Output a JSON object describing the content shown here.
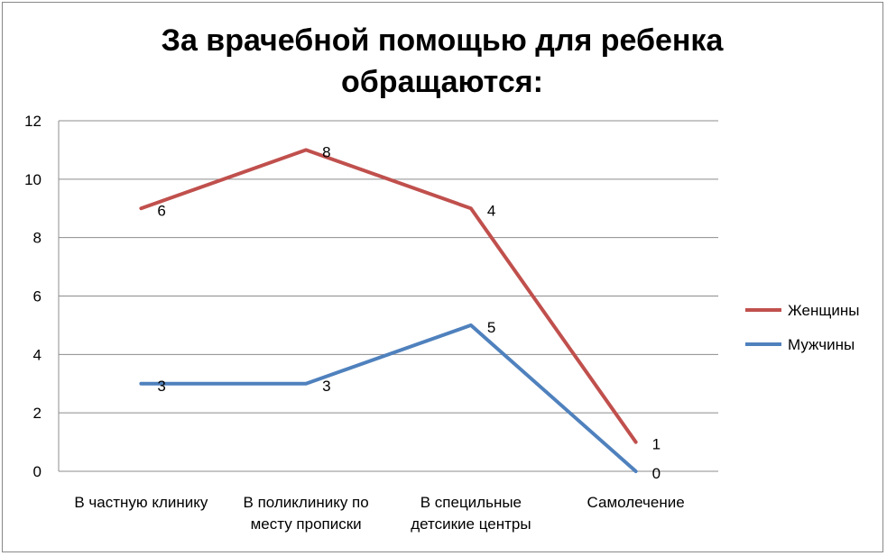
{
  "chart_data": {
    "type": "line",
    "title": "За врачебной помощью для ребенка обращаются:",
    "categories": [
      [
        "В частную клинику"
      ],
      [
        "В поликлинику по",
        "месту прописки"
      ],
      [
        "В специльные",
        "детсикие центры"
      ],
      [
        "Самолечение"
      ]
    ],
    "series": [
      {
        "name": "Женщины",
        "color": "#c0504d",
        "values": [
          9,
          11,
          9,
          1
        ],
        "data_labels": [
          "6",
          "8",
          "4",
          "1"
        ]
      },
      {
        "name": "Мужчины",
        "color": "#4f81bd",
        "values": [
          3,
          3,
          5,
          0
        ],
        "data_labels": [
          "3",
          "3",
          "5",
          "0"
        ]
      }
    ],
    "ylim": [
      0,
      12
    ],
    "yticks": [
      0,
      2,
      4,
      6,
      8,
      10,
      12
    ],
    "grid": true,
    "legend": "right"
  }
}
